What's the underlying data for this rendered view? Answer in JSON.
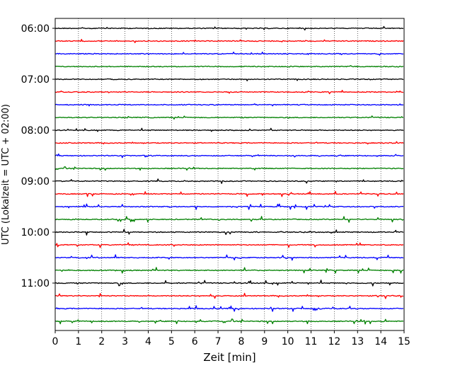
{
  "chart_data": {
    "type": "line",
    "title": "",
    "xlabel": "Zeit  [min]",
    "ylabel": "UTC (Lokalzeit = UTC + 02:00)",
    "xlim": [
      0,
      15
    ],
    "x_ticks": [
      "0",
      "1",
      "2",
      "3",
      "4",
      "5",
      "6",
      "7",
      "8",
      "9",
      "10",
      "11",
      "12",
      "13",
      "14",
      "15"
    ],
    "y_tick_labels": [
      "06:00",
      "07:00",
      "08:00",
      "09:00",
      "10:00",
      "11:00"
    ],
    "grid": "vertical dotted",
    "trace_interval_minutes": 15,
    "colors": [
      "#000000",
      "#ff0000",
      "#0000ff",
      "#008000"
    ],
    "traces": [
      {
        "time": "06:00",
        "color": "#000000",
        "activity": 0.25
      },
      {
        "time": "06:15",
        "color": "#ff0000",
        "activity": 0.25
      },
      {
        "time": "06:30",
        "color": "#0000ff",
        "activity": 0.25
      },
      {
        "time": "06:45",
        "color": "#008000",
        "activity": 0.2
      },
      {
        "time": "07:00",
        "color": "#000000",
        "activity": 0.2
      },
      {
        "time": "07:15",
        "color": "#ff0000",
        "activity": 0.25
      },
      {
        "time": "07:30",
        "color": "#0000ff",
        "activity": 0.2
      },
      {
        "time": "07:45",
        "color": "#008000",
        "activity": 0.25
      },
      {
        "time": "08:00",
        "color": "#000000",
        "activity": 0.3
      },
      {
        "time": "08:15",
        "color": "#ff0000",
        "activity": 0.3
      },
      {
        "time": "08:30",
        "color": "#0000ff",
        "activity": 0.3
      },
      {
        "time": "08:45",
        "color": "#008000",
        "activity": 0.35
      },
      {
        "time": "09:00",
        "color": "#000000",
        "activity": 0.4
      },
      {
        "time": "09:15",
        "color": "#ff0000",
        "activity": 0.6
      },
      {
        "time": "09:30",
        "color": "#0000ff",
        "activity": 0.55
      },
      {
        "time": "09:45",
        "color": "#008000",
        "activity": 0.6
      },
      {
        "time": "10:00",
        "color": "#000000",
        "activity": 0.6
      },
      {
        "time": "10:15",
        "color": "#ff0000",
        "activity": 0.55
      },
      {
        "time": "10:30",
        "color": "#0000ff",
        "activity": 0.6
      },
      {
        "time": "10:45",
        "color": "#008000",
        "activity": 0.6
      },
      {
        "time": "11:00",
        "color": "#000000",
        "activity": 0.65
      },
      {
        "time": "11:15",
        "color": "#ff0000",
        "activity": 0.55
      },
      {
        "time": "11:30",
        "color": "#0000ff",
        "activity": 0.6
      },
      {
        "time": "11:45",
        "color": "#008000",
        "activity": 0.6
      }
    ]
  }
}
